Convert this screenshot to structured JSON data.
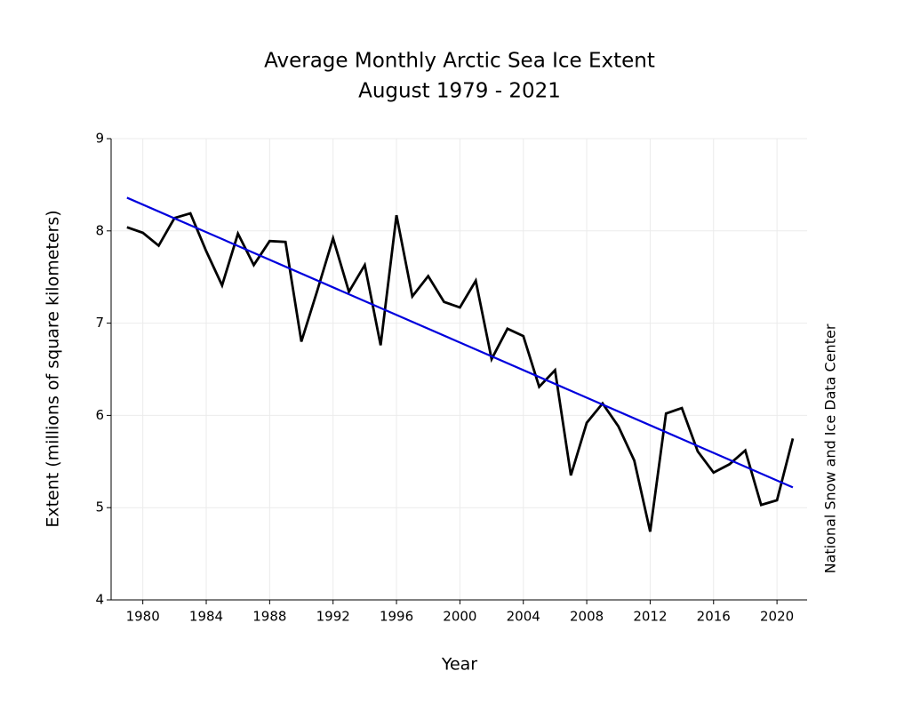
{
  "chart_data": {
    "type": "line",
    "title": "Average Monthly Arctic Sea Ice Extent",
    "subtitle": "August 1979 - 2021",
    "x_label": "Year",
    "y_label": "Extent (millions of square kilometers)",
    "side_note": "National Snow and Ice Data Center",
    "x": [
      1979,
      1980,
      1981,
      1982,
      1983,
      1984,
      1985,
      1986,
      1987,
      1988,
      1989,
      1990,
      1991,
      1992,
      1993,
      1994,
      1995,
      1996,
      1997,
      1998,
      1999,
      2000,
      2001,
      2002,
      2003,
      2004,
      2005,
      2006,
      2007,
      2008,
      2009,
      2010,
      2011,
      2012,
      2013,
      2014,
      2015,
      2016,
      2017,
      2018,
      2019,
      2020,
      2021
    ],
    "series": [
      {
        "color": "#000000",
        "values": [
          8.04,
          7.98,
          7.84,
          8.14,
          8.19,
          7.78,
          7.41,
          7.97,
          7.63,
          7.89,
          7.88,
          6.8,
          7.35,
          7.92,
          7.34,
          7.63,
          6.76,
          8.17,
          7.29,
          7.51,
          7.23,
          7.17,
          7.46,
          6.61,
          6.94,
          6.86,
          6.31,
          6.49,
          5.35,
          5.92,
          6.13,
          5.88,
          5.51,
          4.74,
          6.02,
          6.08,
          5.61,
          5.38,
          5.47,
          5.62,
          5.03,
          5.08,
          5.75
        ]
      }
    ],
    "trend": {
      "color": "#0000dd",
      "x": [
        1979,
        2021
      ],
      "values": [
        8.36,
        5.22
      ]
    },
    "xlim": [
      1978,
      2021.9
    ],
    "ylim": [
      4,
      9
    ],
    "xticks": [
      1980,
      1984,
      1988,
      1992,
      1996,
      2000,
      2004,
      2008,
      2012,
      2016,
      2020
    ],
    "yticks": [
      4,
      5,
      6,
      7,
      8,
      9
    ],
    "grid": true
  }
}
